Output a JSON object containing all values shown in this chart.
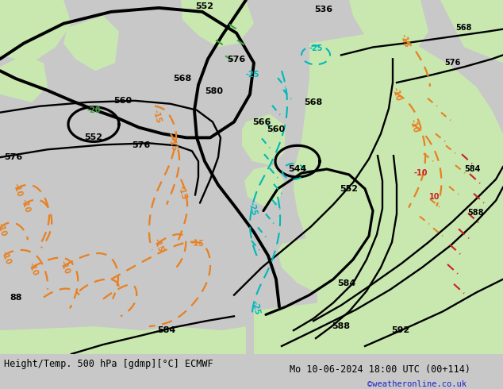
{
  "title_left": "Height/Temp. 500 hPa [gdmp][°C] ECMWF",
  "title_right": "Mo 10-06-2024 18:00 UTC (00+114)",
  "credit": "©weatheronline.co.uk",
  "land_color": "#c8e8b0",
  "sea_color": "#c8c8c8",
  "z500_color": "#000000",
  "orange_color": "#e88020",
  "cyan_color": "#00b8b8",
  "green_label_color": "#40a040",
  "red_color": "#cc2020",
  "fig_width": 6.34,
  "fig_height": 4.9,
  "dpi": 100
}
